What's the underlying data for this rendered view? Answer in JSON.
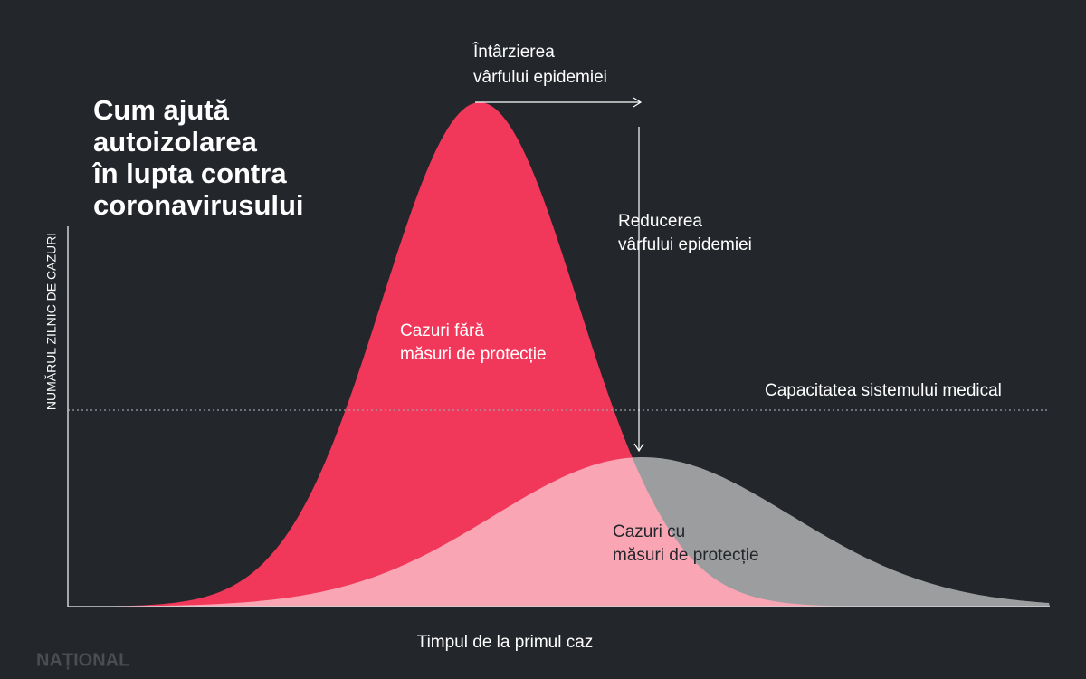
{
  "title": {
    "lines": [
      "Cum ajută",
      "autoizolarea",
      "în lupta contra",
      "coronavirusului"
    ]
  },
  "annotations": {
    "delay": {
      "lines": [
        "Întârzierea",
        "vârfului epidemiei"
      ]
    },
    "reduction": {
      "lines": [
        "Reducerea",
        "vârfului epidemiei"
      ]
    },
    "no_protection": {
      "lines": [
        "Cazuri fără",
        "măsuri de protecție"
      ]
    },
    "with_protection": {
      "lines": [
        "Cazuri cu",
        "măsuri de protecție"
      ]
    },
    "capacity": "Capacitatea sistemului medical"
  },
  "axes": {
    "y_label": "NUMĂRUL ZILNIC DE CAZURI",
    "x_label": "Timpul de la primul caz"
  },
  "watermark": "NAȚIONAL"
}
